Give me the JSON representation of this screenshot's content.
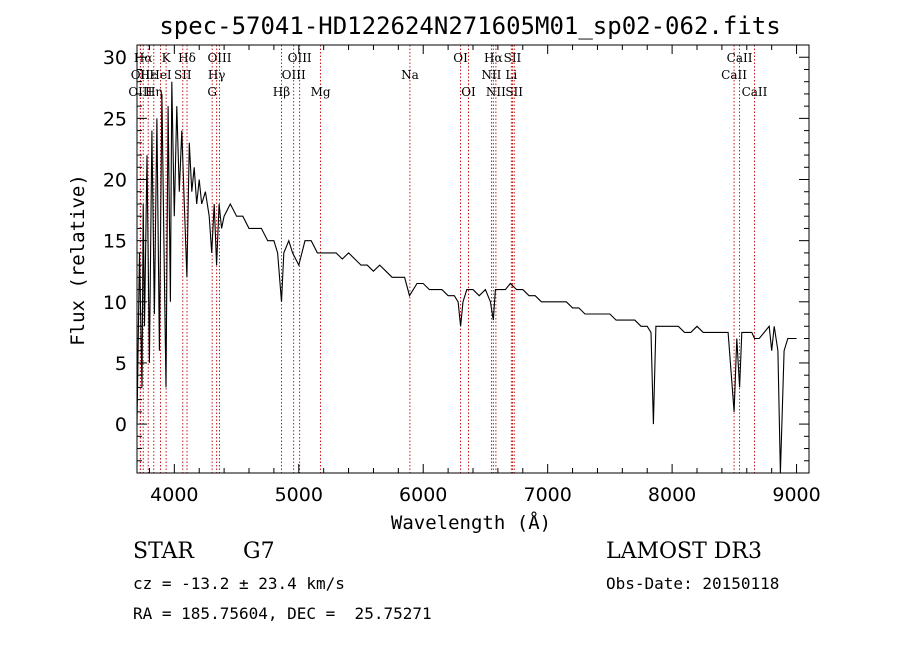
{
  "chart_data": {
    "type": "line",
    "title": "spec-57041-HD122624N271605M01_sp02-062.fits",
    "xlabel": "Wavelength (Å)",
    "ylabel": "Flux (relative)",
    "xlim": [
      3700,
      9100
    ],
    "ylim": [
      -4,
      31
    ],
    "x_ticks": [
      4000,
      5000,
      6000,
      7000,
      8000,
      9000
    ],
    "y_ticks": [
      0,
      5,
      10,
      15,
      20,
      25,
      30
    ],
    "series": [
      {
        "name": "flux",
        "x": [
          3700,
          3720,
          3740,
          3750,
          3760,
          3780,
          3800,
          3820,
          3840,
          3860,
          3880,
          3900,
          3920,
          3933,
          3950,
          3968,
          3980,
          4000,
          4020,
          4040,
          4060,
          4080,
          4101,
          4120,
          4140,
          4160,
          4180,
          4200,
          4220,
          4250,
          4280,
          4300,
          4320,
          4340,
          4360,
          4380,
          4400,
          4450,
          4500,
          4550,
          4600,
          4650,
          4700,
          4750,
          4800,
          4830,
          4861,
          4880,
          4920,
          4950,
          5000,
          5050,
          5100,
          5150,
          5200,
          5250,
          5300,
          5350,
          5400,
          5450,
          5500,
          5550,
          5600,
          5650,
          5700,
          5750,
          5800,
          5850,
          5890,
          5950,
          6000,
          6050,
          6100,
          6150,
          6200,
          6250,
          6280,
          6300,
          6320,
          6350,
          6400,
          6450,
          6500,
          6540,
          6563,
          6580,
          6620,
          6660,
          6700,
          6750,
          6800,
          6850,
          6900,
          6950,
          7000,
          7050,
          7100,
          7150,
          7200,
          7250,
          7300,
          7350,
          7400,
          7450,
          7500,
          7550,
          7600,
          7650,
          7700,
          7750,
          7800,
          7830,
          7850,
          7870,
          7900,
          7950,
          8000,
          8050,
          8100,
          8150,
          8200,
          8250,
          8300,
          8350,
          8400,
          8450,
          8498,
          8520,
          8542,
          8560,
          8600,
          8640,
          8662,
          8700,
          8740,
          8780,
          8800,
          8820,
          8850,
          8870,
          8900,
          8930,
          8960,
          9000
        ],
        "values": [
          0,
          14,
          3,
          18,
          8,
          22,
          5,
          24,
          9,
          25,
          6,
          27,
          12,
          3,
          26,
          10,
          28,
          17,
          26,
          19,
          24,
          18,
          12,
          23,
          19,
          21,
          18,
          20,
          18,
          19,
          17,
          14,
          18,
          13,
          18,
          16,
          17,
          18,
          17,
          17,
          16,
          16,
          16,
          15,
          15,
          14,
          10,
          14,
          15,
          14,
          13,
          15,
          15,
          14,
          14,
          14,
          14,
          13.5,
          14,
          13.5,
          13,
          13,
          12.5,
          13,
          12.5,
          12,
          12,
          12,
          10.5,
          11.5,
          11.5,
          11,
          11,
          11,
          10.5,
          10.5,
          10,
          8,
          10,
          11,
          11,
          10.5,
          11,
          10,
          8.5,
          11,
          11,
          11,
          11.5,
          11,
          11,
          10.5,
          10.5,
          10,
          10,
          10,
          10,
          10,
          9.5,
          9.5,
          9,
          9,
          9,
          9,
          9,
          8.5,
          8.5,
          8.5,
          8.5,
          8,
          8,
          7.5,
          0,
          8,
          8,
          8,
          8,
          8,
          7.5,
          7.5,
          8,
          7.5,
          7.5,
          7.5,
          7.5,
          7.5,
          1,
          7,
          3,
          7.5,
          7.5,
          7.5,
          7,
          7,
          7.5,
          8,
          6,
          8,
          6,
          -4,
          6,
          7,
          7,
          7
        ]
      }
    ],
    "line_markers": [
      {
        "label": "Hα",
        "x": 3750,
        "row": 0
      },
      {
        "label": "OII",
        "x": 3727,
        "row": 1
      },
      {
        "label": "OIII",
        "x": 3727,
        "row": 2
      },
      {
        "label": "Hε",
        "x": 3790,
        "row": 1
      },
      {
        "label": "Hη",
        "x": 3835,
        "row": 2
      },
      {
        "label": "K",
        "x": 3934,
        "row": 0
      },
      {
        "label": "HeI",
        "x": 3889,
        "row": 1
      },
      {
        "label": "SII",
        "x": 4068,
        "row": 1
      },
      {
        "label": "Hδ",
        "x": 4102,
        "row": 0
      },
      {
        "label": "OIII",
        "x": 4363,
        "row": 0
      },
      {
        "label": "Hγ",
        "x": 4340,
        "row": 1
      },
      {
        "label": "G",
        "x": 4304,
        "row": 2
      },
      {
        "label": "Hβ",
        "x": 4861,
        "row": 2
      },
      {
        "label": "OIII",
        "x": 5007,
        "row": 0
      },
      {
        "label": "OIII",
        "x": 4959,
        "row": 1
      },
      {
        "label": "Mg",
        "x": 5175,
        "row": 2
      },
      {
        "label": "Na",
        "x": 5893,
        "row": 1
      },
      {
        "label": "OI",
        "x": 6300,
        "row": 0
      },
      {
        "label": "OI",
        "x": 6364,
        "row": 2
      },
      {
        "label": "Hα",
        "x": 6563,
        "row": 0
      },
      {
        "label": "NII",
        "x": 6548,
        "row": 1
      },
      {
        "label": "NII",
        "x": 6584,
        "row": 2
      },
      {
        "label": "SII",
        "x": 6717,
        "row": 0
      },
      {
        "label": "Li",
        "x": 6708,
        "row": 1
      },
      {
        "label": "SII",
        "x": 6731,
        "row": 2
      },
      {
        "label": "CaII",
        "x": 8542,
        "row": 0
      },
      {
        "label": "CaII",
        "x": 8498,
        "row": 1
      },
      {
        "label": "CaII",
        "x": 8662,
        "row": 2
      }
    ],
    "colors": {
      "spectrum": "#000000",
      "marker": "#c00000",
      "axes": "#000000"
    }
  },
  "info": {
    "object_type": "STAR",
    "subclass": "G7",
    "survey": "LAMOST DR3",
    "redshift": "cz = -13.2 ± 23.4 km/s",
    "obs_date": "Obs-Date: 20150118",
    "coords": "RA = 185.75604, DEC =  25.75271"
  }
}
